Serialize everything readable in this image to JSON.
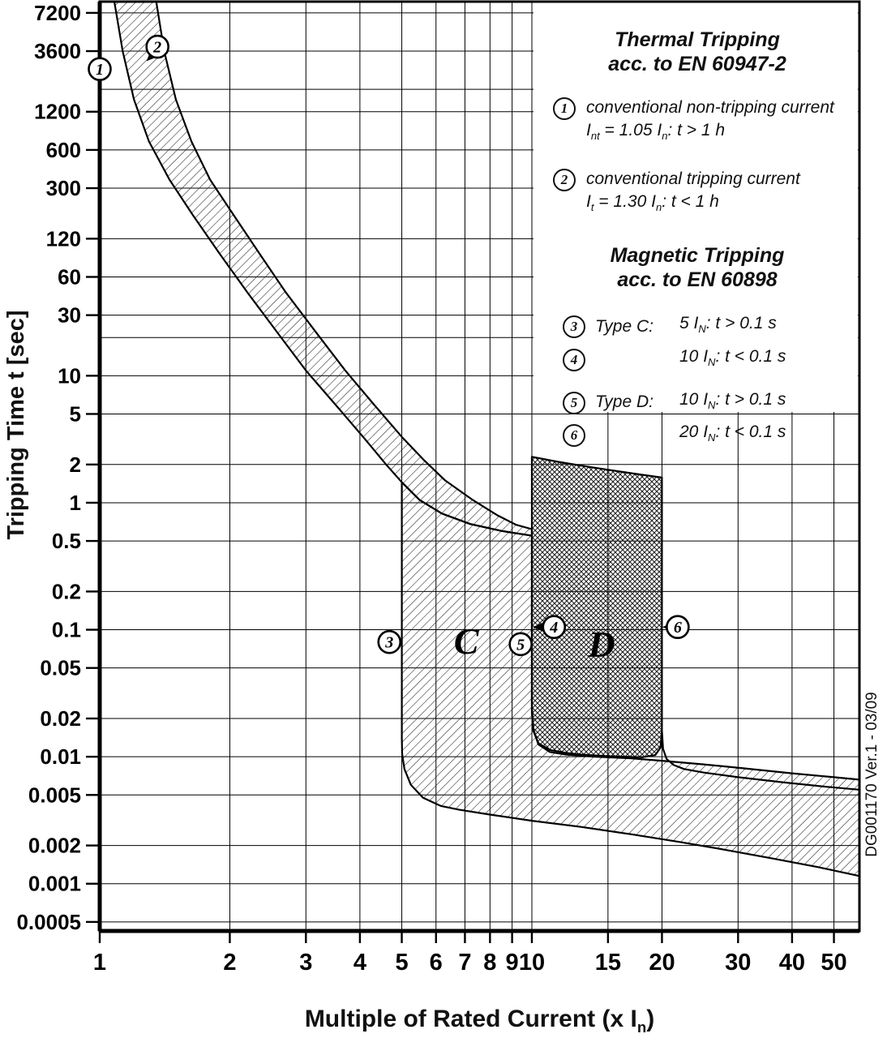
{
  "legend": {
    "thermal_title": "Thermal Tripping",
    "thermal_std": "acc. to EN 60947-2",
    "items": [
      {
        "num": "1",
        "line1": "conventional non-tripping current",
        "line2": "I~nt~ = 1.05 I~n~:  t > 1 h"
      },
      {
        "num": "2",
        "line1": "conventional tripping current",
        "line2": "I~t~ = 1.30 I~n~:  t < 1 h"
      }
    ],
    "magnetic_title": "Magnetic Tripping",
    "magnetic_std": "acc. to EN 60898",
    "mag_items": [
      {
        "num": "3",
        "label": "Type C:",
        "value": "5 I~N~:  t > 0.1 s"
      },
      {
        "num": "4",
        "label": "",
        "value": "10 I~N~:  t < 0.1 s"
      },
      {
        "num": "5",
        "label": "Type D:",
        "value": "10 I~N~:  t > 0.1 s"
      },
      {
        "num": "6",
        "label": "",
        "value": "20 I~N~:  t < 0.1 s"
      }
    ]
  },
  "watermark": "DG001170 Ver.1 - 03/09",
  "chart_data": {
    "type": "line",
    "x_axis": {
      "label": "Multiple of Rated Current (x I~n~)",
      "scale": "log",
      "range": [
        1,
        57
      ],
      "ticks": [
        1,
        2,
        3,
        4,
        5,
        6,
        7,
        8,
        9,
        10,
        15,
        20,
        30,
        40,
        50
      ]
    },
    "y_axis": {
      "label": "Tripping Time t [sec]",
      "scale": "log",
      "range": [
        0.0004,
        8800
      ],
      "ticks": [
        {
          "v": 7200,
          "l": "7200"
        },
        {
          "v": 3600,
          "l": "3600"
        },
        {
          "v": 1200,
          "l": "1200"
        },
        {
          "v": 600,
          "l": "600"
        },
        {
          "v": 300,
          "l": "300"
        },
        {
          "v": 120,
          "l": "120"
        },
        {
          "v": 60,
          "l": "60"
        },
        {
          "v": 30,
          "l": "30"
        },
        {
          "v": 10,
          "l": "10"
        },
        {
          "v": 5,
          "l": "5"
        },
        {
          "v": 2,
          "l": "2"
        },
        {
          "v": 1,
          "l": "1"
        },
        {
          "v": 0.5,
          "l": "0.5"
        },
        {
          "v": 0.2,
          "l": "0.2"
        },
        {
          "v": 0.1,
          "l": "0.1"
        },
        {
          "v": 0.05,
          "l": "0.05"
        },
        {
          "v": 0.02,
          "l": "0.02"
        },
        {
          "v": 0.01,
          "l": "0.01"
        },
        {
          "v": 0.005,
          "l": "0.005"
        },
        {
          "v": 0.002,
          "l": "0.002"
        },
        {
          "v": 0.001,
          "l": "0.001"
        },
        {
          "v": 0.0005,
          "l": "0.0005"
        }
      ]
    },
    "minor_gridlines_y": [
      1800,
      20
    ],
    "regions": [
      {
        "name": "thermal-tripping-band",
        "style": "hatch-light",
        "closed": true,
        "points": [
          [
            1.08,
            9000
          ],
          [
            1.13,
            3600
          ],
          [
            1.2,
            1500
          ],
          [
            1.3,
            700
          ],
          [
            1.45,
            350
          ],
          [
            1.65,
            180
          ],
          [
            1.9,
            90
          ],
          [
            2.2,
            45
          ],
          [
            2.6,
            21
          ],
          [
            3.0,
            11
          ],
          [
            3.5,
            6.0
          ],
          [
            4.1,
            3.2
          ],
          [
            4.6,
            2.0
          ],
          [
            5.0,
            1.45
          ],
          [
            5.5,
            1.05
          ],
          [
            6.2,
            0.82
          ],
          [
            7.2,
            0.68
          ],
          [
            8.5,
            0.6
          ],
          [
            10.0,
            0.55
          ],
          [
            10.0,
            0.62
          ],
          [
            9.2,
            0.67
          ],
          [
            8.3,
            0.8
          ],
          [
            7.3,
            1.05
          ],
          [
            6.3,
            1.5
          ],
          [
            5.6,
            2.2
          ],
          [
            5.0,
            3.3
          ],
          [
            4.3,
            6.0
          ],
          [
            3.7,
            11
          ],
          [
            3.2,
            21
          ],
          [
            2.7,
            45
          ],
          [
            2.35,
            90
          ],
          [
            2.05,
            180
          ],
          [
            1.8,
            350
          ],
          [
            1.63,
            700
          ],
          [
            1.5,
            1500
          ],
          [
            1.41,
            3600
          ],
          [
            1.35,
            9000
          ]
        ]
      },
      {
        "name": "type-c-magnetic-band-and-instantaneous-band",
        "style": "hatch-light",
        "closed": true,
        "points": [
          [
            5.0,
            1.45
          ],
          [
            5.5,
            1.05
          ],
          [
            6.2,
            0.82
          ],
          [
            7.2,
            0.68
          ],
          [
            8.5,
            0.6
          ],
          [
            10.0,
            0.55
          ],
          [
            10.0,
            0.025
          ],
          [
            10.08,
            0.0165
          ],
          [
            10.35,
            0.0125
          ],
          [
            11.0,
            0.0109
          ],
          [
            12.0,
            0.0104
          ],
          [
            14.0,
            0.01
          ],
          [
            17.0,
            0.0097
          ],
          [
            20.0,
            0.0093
          ],
          [
            25.0,
            0.0087
          ],
          [
            31.0,
            0.0081
          ],
          [
            40.0,
            0.0074
          ],
          [
            50.0,
            0.0069
          ],
          [
            57.2,
            0.0066
          ],
          [
            57.2,
            0.00115
          ],
          [
            46.0,
            0.00135
          ],
          [
            36.0,
            0.00158
          ],
          [
            28.0,
            0.00185
          ],
          [
            22.0,
            0.00213
          ],
          [
            17.0,
            0.00245
          ],
          [
            13.0,
            0.0028
          ],
          [
            10.0,
            0.00313
          ],
          [
            8.0,
            0.0035
          ],
          [
            6.8,
            0.00382
          ],
          [
            6.15,
            0.0041
          ],
          [
            5.6,
            0.00475
          ],
          [
            5.25,
            0.006
          ],
          [
            5.07,
            0.008
          ],
          [
            5.01,
            0.0105
          ],
          [
            5.0,
            0.014
          ]
        ]
      },
      {
        "name": "type-d-magnetic-band",
        "style": "hatch-dense",
        "closed": true,
        "points": [
          [
            10.0,
            2.3
          ],
          [
            11.5,
            2.1
          ],
          [
            13.5,
            1.92
          ],
          [
            16.0,
            1.76
          ],
          [
            18.0,
            1.66
          ],
          [
            20.0,
            1.58
          ],
          [
            20.0,
            0.016
          ],
          [
            19.85,
            0.0118
          ],
          [
            19.3,
            0.0103
          ],
          [
            18.0,
            0.0099
          ],
          [
            15.0,
            0.0101
          ],
          [
            13.0,
            0.0104
          ],
          [
            12.0,
            0.0107
          ],
          [
            11.0,
            0.0113
          ],
          [
            10.35,
            0.0128
          ],
          [
            10.08,
            0.016
          ],
          [
            10.0,
            0.022
          ]
        ]
      },
      {
        "name": "type-d-upper-magnetic-limit-curve",
        "style": "line",
        "closed": false,
        "points": [
          [
            20.0,
            0.016
          ],
          [
            20.12,
            0.0115
          ],
          [
            20.5,
            0.0096
          ],
          [
            21.3,
            0.0086
          ],
          [
            22.5,
            0.008
          ],
          [
            25.0,
            0.0075
          ],
          [
            30.0,
            0.0069
          ],
          [
            38.0,
            0.0063
          ],
          [
            48.0,
            0.0058
          ],
          [
            57.2,
            0.0055
          ]
        ]
      }
    ],
    "region_labels": [
      {
        "text": "C",
        "x": 7.05,
        "t": 0.065
      },
      {
        "text": "D",
        "x": 14.5,
        "t": 0.061
      }
    ],
    "callouts": [
      {
        "num": "1",
        "x": 1.0,
        "t": 2600
      },
      {
        "num": "2",
        "x": 1.36,
        "t": 3900,
        "arrow": {
          "x": 1.283,
          "t": 3000,
          "angle": 135
        }
      },
      {
        "num": "3",
        "x": 4.68,
        "t": 0.08,
        "arrow": {
          "x": 5.02,
          "t": 0.08,
          "angle": 0
        }
      },
      {
        "num": "4",
        "x": 11.25,
        "t": 0.105,
        "arrow": {
          "x": 10.05,
          "t": 0.105,
          "angle": 180
        }
      },
      {
        "num": "5",
        "x": 9.42,
        "t": 0.077,
        "arrow": {
          "x": 10.0,
          "t": 0.077,
          "angle": 0
        }
      },
      {
        "num": "6",
        "x": 21.75,
        "t": 0.105,
        "arrow": {
          "x": 20.05,
          "t": 0.105,
          "angle": 180
        }
      }
    ]
  }
}
